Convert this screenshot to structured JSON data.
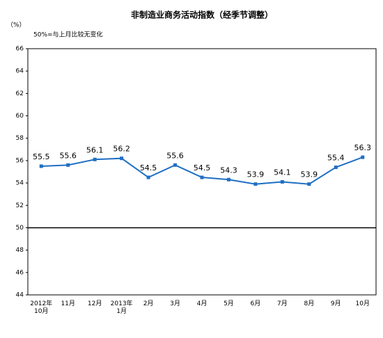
{
  "chart_data": {
    "type": "line",
    "title": "非制造业商务活动指数（经季节调整）",
    "unit_label": "（%）",
    "annotation": "50%=与上月比较无变化",
    "categories": [
      "2012年\n10月",
      "11月",
      "12月",
      "2013年\n1月",
      "2月",
      "3月",
      "4月",
      "5月",
      "6月",
      "7月",
      "8月",
      "9月",
      "10月"
    ],
    "series": [
      {
        "name": "非制造业商务活动指数",
        "color": "#1f6fc4",
        "values": [
          55.5,
          55.6,
          56.1,
          56.2,
          54.5,
          55.6,
          54.5,
          54.3,
          53.9,
          54.1,
          53.9,
          55.4,
          56.3
        ]
      }
    ],
    "ylim": [
      44,
      66
    ],
    "yticks": [
      44,
      46,
      48,
      50,
      52,
      54,
      56,
      58,
      60,
      62,
      64,
      66
    ],
    "reference_line": 50,
    "legend": false
  }
}
